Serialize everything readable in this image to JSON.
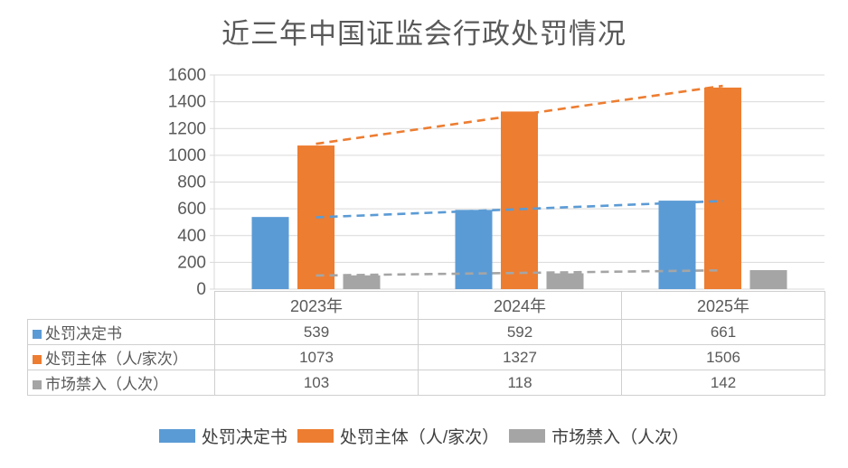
{
  "title": "近三年中国证监会行政处罚情况",
  "chart_data": {
    "type": "bar",
    "title": "近三年中国证监会行政处罚情况",
    "categories": [
      "2023年",
      "2024年",
      "2025年"
    ],
    "series": [
      {
        "id": "penalty-decisions",
        "name": "处罚决定书",
        "values": [
          539,
          592,
          661
        ],
        "color": "#5B9BD5",
        "trendline": "linear-dashed"
      },
      {
        "id": "penalized-subjects",
        "name": "处罚主体（人/家次）",
        "values": [
          1073,
          1327,
          1506
        ],
        "color": "#ED7D31",
        "trendline": "linear-dashed"
      },
      {
        "id": "market-bans",
        "name": "市场禁入（人次）",
        "values": [
          103,
          118,
          142
        ],
        "color": "#A5A5A5",
        "trendline": "linear-dashed"
      }
    ],
    "xlabel": "",
    "ylabel": "",
    "ylim": [
      0,
      1600
    ],
    "yticks": [
      0,
      200,
      400,
      600,
      800,
      1000,
      1200,
      1400,
      1600
    ],
    "grid": true,
    "legend_position": "bottom",
    "data_table_shown": true
  },
  "colors": {
    "grid": "#D9D9D9",
    "axis_text": "#595959",
    "title_text": "#595959",
    "table_border": "#CFCFCF",
    "background": "#FFFFFF"
  }
}
